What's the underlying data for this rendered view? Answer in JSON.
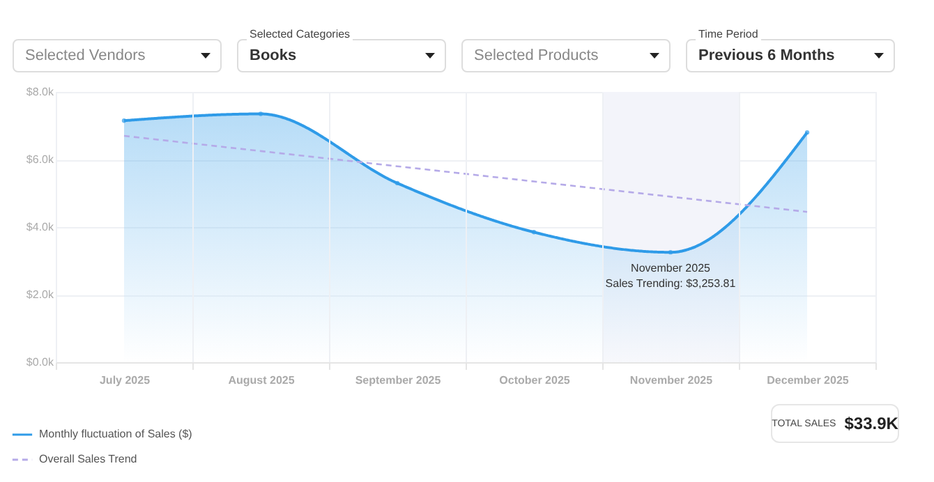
{
  "chart_data": {
    "type": "area",
    "categories": [
      "July 2025",
      "August 2025",
      "September 2025",
      "October 2025",
      "November 2025",
      "December 2025"
    ],
    "series": [
      {
        "name": "Monthly fluctuation of Sales ($)",
        "color": "#2f9be8",
        "marker": "circle",
        "values": [
          7150,
          7350,
          5300,
          3850,
          3253.81,
          6800
        ]
      },
      {
        "name": "Overall Sales Trend",
        "type": "line",
        "line_style": "dashed",
        "color": "#b5aae8",
        "values": [
          6700,
          6250,
          5800,
          5350,
          4900,
          4450
        ]
      }
    ],
    "ylim": [
      0,
      8000
    ],
    "yticks": [
      {
        "value": 0,
        "label": "$0.0k"
      },
      {
        "value": 2000,
        "label": "$2.0k"
      },
      {
        "value": 4000,
        "label": "$4.0k"
      },
      {
        "value": 6000,
        "label": "$6.0k"
      },
      {
        "value": 8000,
        "label": "$8.0k"
      }
    ],
    "grid": true,
    "legend": "bottom left",
    "bands": [
      {
        "axis": "x",
        "from": "November 2025",
        "to": "November 2025",
        "color": "#f3f4fa"
      }
    ],
    "annotations": [
      "Selected Vendors",
      "Selected Categories",
      "Books",
      "Selected Products",
      "Time Period",
      "Previous 6 Months",
      "TOTAL SALES",
      "$33.9K",
      {
        "text": "Sales Trending: $3,253.81",
        "x": "November 2025",
        "y": 3253.81
      }
    ]
  }
}
